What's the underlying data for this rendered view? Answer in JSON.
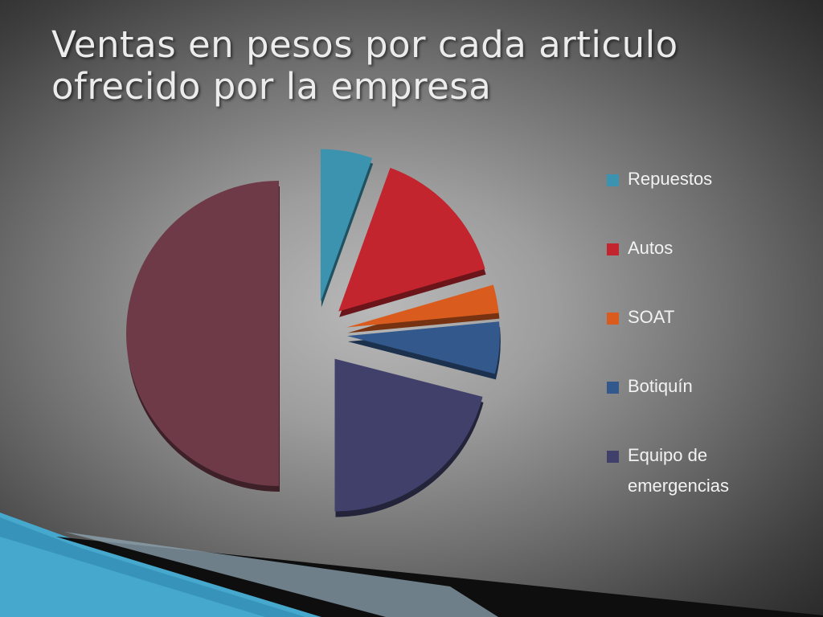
{
  "slide": {
    "title": "Ventas en pesos por cada articulo ofrecido por la empresa"
  },
  "chart_data": {
    "type": "pie",
    "title": "",
    "legend_position": "right",
    "categories": [
      "Repuestos",
      "Autos",
      "SOAT",
      "Botiquín",
      "Equipo de emergencias",
      ""
    ],
    "values": [
      5.5,
      15,
      3,
      5.5,
      21,
      50
    ],
    "colors": [
      "#3c93b0",
      "#c2252e",
      "#d95c1e",
      "#33598c",
      "#40406a",
      "#6e3a48"
    ],
    "legend": [
      {
        "label": "Repuestos",
        "color": "#3c93b0"
      },
      {
        "label": "Autos",
        "color": "#c2252e"
      },
      {
        "label": "SOAT",
        "color": "#d95c1e"
      },
      {
        "label": "Botiquín",
        "color": "#33598c"
      },
      {
        "label": "Equipo de emergencias",
        "color": "#40406a"
      }
    ]
  }
}
